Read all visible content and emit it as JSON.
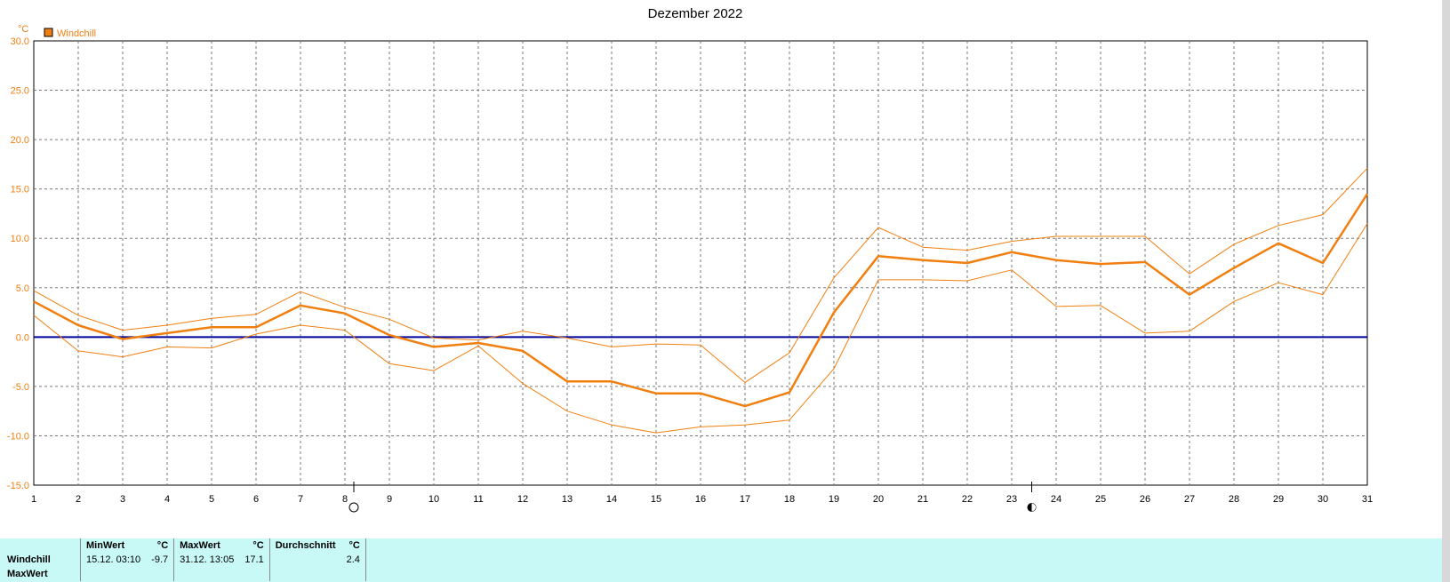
{
  "chart_data": {
    "type": "line",
    "title": "Dezember 2022",
    "y_unit": "°C",
    "legend": {
      "label": "Windchill",
      "color": "#f07f0f",
      "placement": "top-left"
    },
    "xlim": [
      1,
      31
    ],
    "ylim": [
      -15,
      30
    ],
    "x_ticks": [
      1,
      2,
      3,
      4,
      5,
      6,
      7,
      8,
      9,
      10,
      11,
      12,
      13,
      14,
      15,
      16,
      17,
      18,
      19,
      20,
      21,
      22,
      23,
      24,
      25,
      26,
      27,
      28,
      29,
      30,
      31
    ],
    "y_ticks": [
      "30.0",
      "25.0",
      "20.0",
      "15.0",
      "10.0",
      "5.0",
      "0.0",
      "-5.0",
      "-10.0",
      "-15.0"
    ],
    "grid": true,
    "zero_line_color": "#00009a",
    "x": [
      1,
      2,
      3,
      4,
      5,
      6,
      7,
      8,
      9,
      10,
      11,
      12,
      13,
      14,
      15,
      16,
      17,
      18,
      19,
      20,
      21,
      22,
      23,
      24,
      25,
      26,
      27,
      28,
      29,
      30,
      31
    ],
    "series": [
      {
        "role": "average",
        "color": "#f07f0f",
        "values": [
          3.6,
          1.2,
          -0.2,
          0.4,
          1.0,
          1.0,
          3.2,
          2.4,
          0.2,
          -1.0,
          -0.6,
          -1.4,
          -4.5,
          -4.5,
          -5.7,
          -5.7,
          -7.0,
          -5.6,
          2.5,
          8.2,
          7.8,
          7.5,
          8.6,
          7.8,
          7.4,
          7.6,
          4.3,
          7.0,
          9.5,
          7.5,
          14.5
        ]
      },
      {
        "role": "maximum",
        "color": "#f07f0f",
        "values": [
          4.7,
          2.2,
          0.7,
          1.2,
          1.9,
          2.3,
          4.6,
          3.0,
          1.8,
          -0.1,
          -0.3,
          0.6,
          -0.1,
          -1.0,
          -0.7,
          -0.8,
          -4.6,
          -1.6,
          6.0,
          11.1,
          9.1,
          8.8,
          9.7,
          10.2,
          10.2,
          10.2,
          6.4,
          9.4,
          11.3,
          12.4,
          17.1
        ]
      },
      {
        "role": "minimum",
        "color": "#f07f0f",
        "values": [
          2.2,
          -1.4,
          -2.0,
          -1.0,
          -1.1,
          0.3,
          1.2,
          0.7,
          -2.7,
          -3.4,
          -0.9,
          -4.7,
          -7.5,
          -8.9,
          -9.7,
          -9.1,
          -8.9,
          -8.4,
          -3.2,
          5.8,
          5.8,
          5.7,
          6.8,
          3.1,
          3.2,
          0.4,
          0.6,
          3.6,
          5.5,
          4.3,
          11.5
        ]
      }
    ],
    "moon_phases": [
      {
        "x": 8.2,
        "symbol": "full-moon"
      },
      {
        "x": 23.45,
        "symbol": "last-quarter-moon"
      }
    ]
  },
  "stats": {
    "headers": {
      "min": "MinWert",
      "max": "MaxWert",
      "avg": "Durchschnitt",
      "unit": "°C"
    },
    "rows": [
      {
        "label": "Windchill",
        "min_time": "15.12.  03:10",
        "min_value": "-9.7",
        "max_time": "31.12.  13:05",
        "max_value": "17.1",
        "avg_value": "2.4"
      },
      {
        "label": "MaxWert"
      }
    ]
  }
}
